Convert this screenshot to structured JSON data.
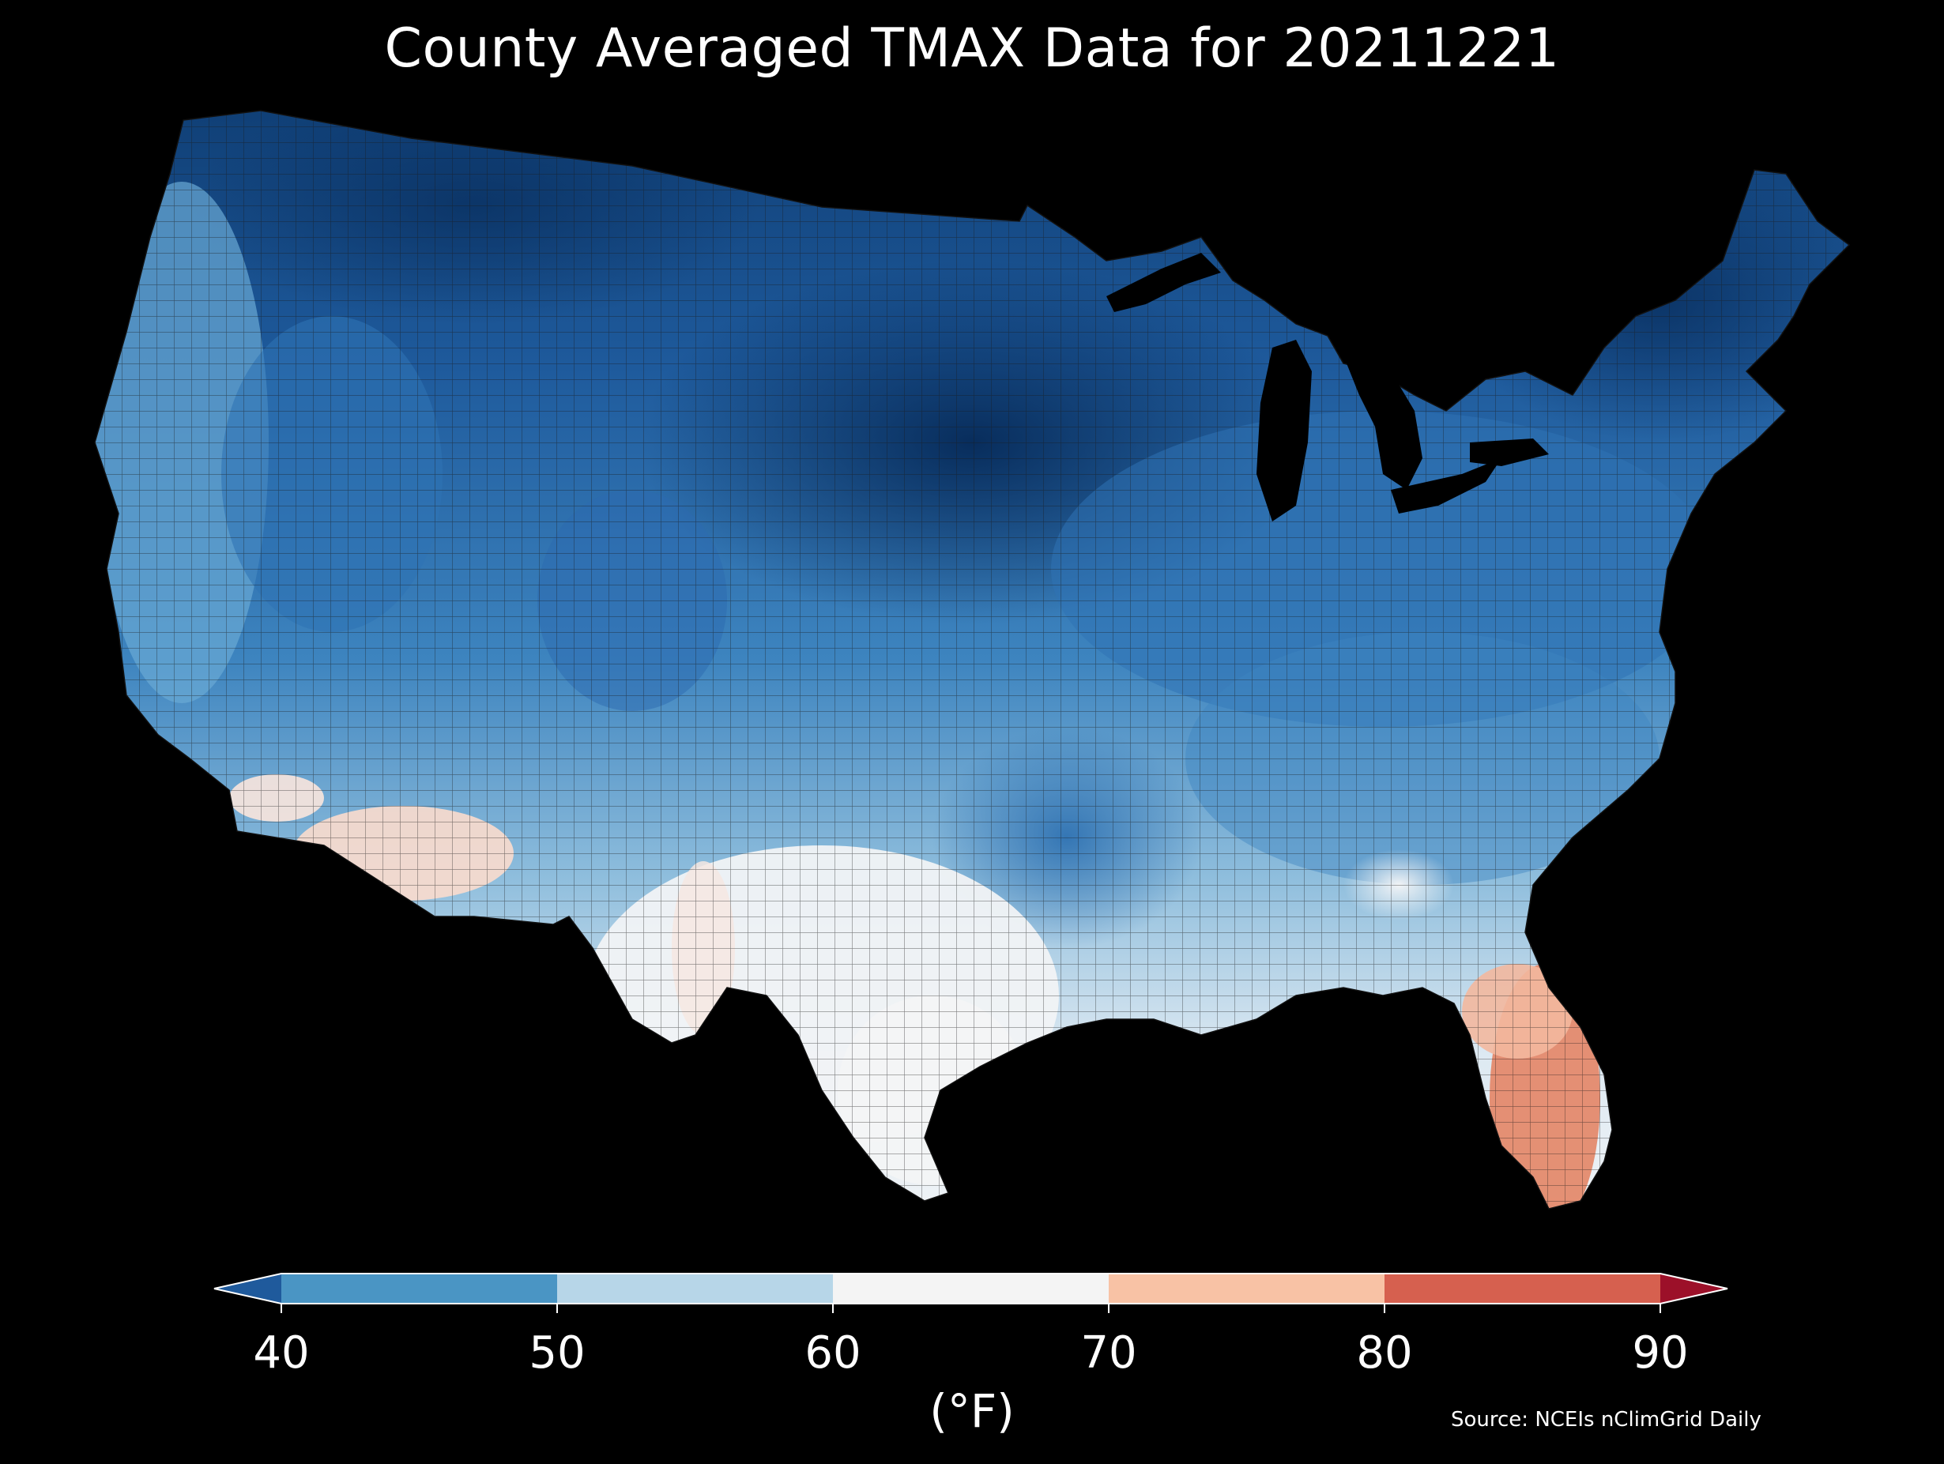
{
  "title": "County Averaged TMAX Data for 20211221",
  "colorbar": {
    "label": "(°F)",
    "ticks": [
      "40",
      "50",
      "60",
      "70",
      "80",
      "90"
    ],
    "bins": [
      {
        "range": "<40",
        "color": "#1f5a9c"
      },
      {
        "range": "40-50",
        "color": "#4a95c4"
      },
      {
        "range": "50-60",
        "color": "#b7d6e8"
      },
      {
        "range": "60-70",
        "color": "#f4f4f4"
      },
      {
        "range": "70-80",
        "color": "#f8c2a5"
      },
      {
        "range": "80-90",
        "color": "#d6604f"
      },
      {
        "range": ">90",
        "color": "#9c1029"
      }
    ],
    "extend": "both"
  },
  "source": "Source: NCEIs nClimGrid Daily",
  "map": {
    "type": "choropleth",
    "region": "Contiguous United States counties",
    "background": "#000000"
  }
}
